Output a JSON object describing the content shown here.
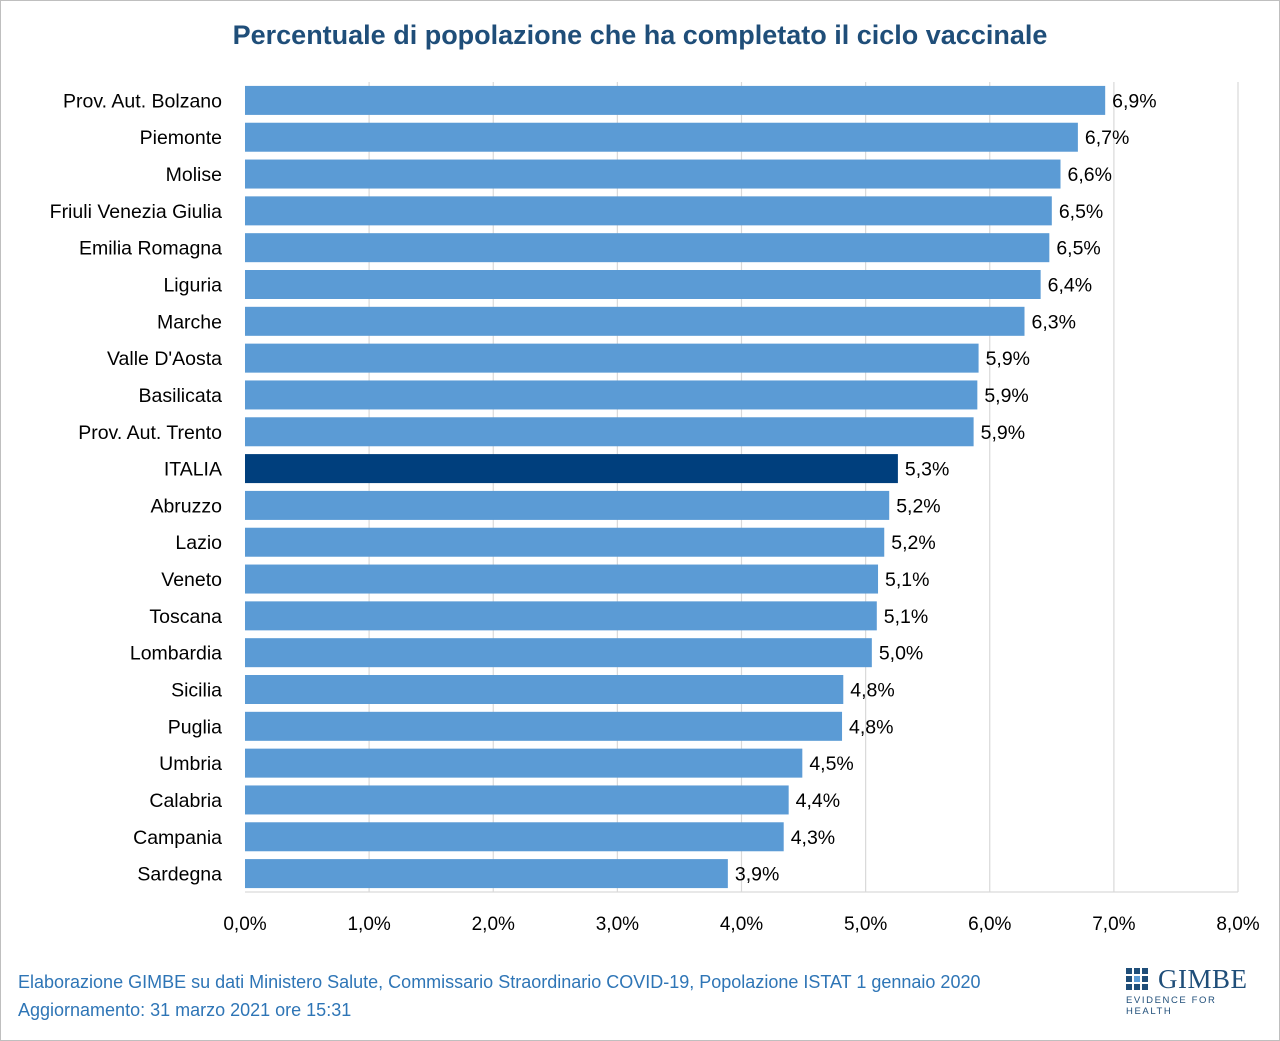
{
  "title": "Percentuale di popolazione che ha completato il ciclo vaccinale",
  "footer": {
    "line1": "Elaborazione GIMBE su dati Ministero Salute, Commissario Straordinario COVID-19, Popolazione ISTAT 1 gennaio 2020",
    "line2": "Aggiornamento: 31 marzo 2021 ore 15:31"
  },
  "logo": {
    "name": "GIMBE",
    "tagline": "EVIDENCE FOR HEALTH"
  },
  "colors": {
    "bar": "#5b9bd5",
    "highlight": "#003f7d",
    "title": "#1f4e79",
    "footer": "#2e75b6",
    "grid": "#d9d9d9"
  },
  "chart_data": {
    "type": "bar",
    "orientation": "horizontal",
    "categories": [
      "Prov. Aut. Bolzano",
      "Piemonte",
      "Molise",
      "Friuli Venezia Giulia",
      "Emilia Romagna",
      "Liguria",
      "Marche",
      "Valle D'Aosta",
      "Basilicata",
      "Prov. Aut. Trento",
      "ITALIA",
      "Abruzzo",
      "Lazio",
      "Veneto",
      "Toscana",
      "Lombardia",
      "Sicilia",
      "Puglia",
      "Umbria",
      "Calabria",
      "Campania",
      "Sardegna"
    ],
    "values": [
      6.93,
      6.71,
      6.57,
      6.5,
      6.48,
      6.41,
      6.28,
      5.91,
      5.9,
      5.87,
      5.26,
      5.19,
      5.15,
      5.1,
      5.09,
      5.05,
      4.82,
      4.81,
      4.49,
      4.38,
      4.34,
      3.89
    ],
    "value_labels": [
      "6,9%",
      "6,7%",
      "6,6%",
      "6,5%",
      "6,5%",
      "6,4%",
      "6,3%",
      "5,9%",
      "5,9%",
      "5,9%",
      "5,3%",
      "5,2%",
      "5,2%",
      "5,1%",
      "5,1%",
      "5,0%",
      "4,8%",
      "4,8%",
      "4,5%",
      "4,4%",
      "4,3%",
      "3,9%"
    ],
    "highlight": "ITALIA",
    "xlim": [
      0,
      8
    ],
    "xticks": [
      0,
      1,
      2,
      3,
      4,
      5,
      6,
      7,
      8
    ],
    "xtick_labels": [
      "0,0%",
      "1,0%",
      "2,0%",
      "3,0%",
      "4,0%",
      "5,0%",
      "6,0%",
      "7,0%",
      "8,0%"
    ],
    "grid": true
  }
}
